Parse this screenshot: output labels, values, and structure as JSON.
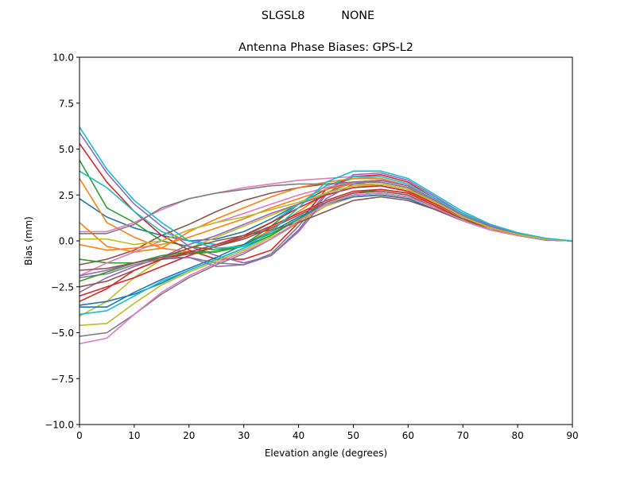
{
  "figure": {
    "suptitle": "SLGSL8          NONE"
  },
  "chart_data": {
    "type": "line",
    "title": "Antenna Phase Biases: GPS-L2",
    "xlabel": "Elevation angle (degrees)",
    "ylabel": "Bias (mm)",
    "xlim": [
      0,
      90
    ],
    "ylim": [
      -10,
      10
    ],
    "xticks": [
      0,
      10,
      20,
      30,
      40,
      50,
      60,
      70,
      80,
      90
    ],
    "xtick_labels": [
      "0",
      "10",
      "20",
      "30",
      "40",
      "50",
      "60",
      "70",
      "80",
      "90"
    ],
    "yticks": [
      10,
      7.5,
      5,
      2.5,
      0,
      -2.5,
      -5,
      -7.5,
      -10
    ],
    "ytick_labels": [
      "10.0",
      "7.5",
      "5.0",
      "2.5",
      "0.0",
      "−2.5",
      "−5.0",
      "−7.5",
      "−10.0"
    ],
    "grid": false,
    "legend": "none",
    "colors": [
      "#1f77b4",
      "#ff7f0e",
      "#2ca02c",
      "#d62728",
      "#9467bd",
      "#8c564b",
      "#e377c2",
      "#7f7f7f",
      "#bcbd22",
      "#17becf"
    ],
    "x": [
      0,
      5,
      10,
      15,
      20,
      25,
      30,
      35,
      40,
      45,
      50,
      55,
      60,
      65,
      70,
      75,
      80,
      85,
      90
    ],
    "series": [
      {
        "values": [
          2.3,
          1.3,
          0.7,
          0.3,
          0.0,
          0.1,
          0.5,
          1.2,
          2.0,
          2.8,
          3.2,
          3.3,
          3.0,
          2.2,
          1.4,
          0.8,
          0.4,
          0.1,
          0
        ]
      },
      {
        "values": [
          3.4,
          1.0,
          0.2,
          -0.4,
          -0.6,
          -0.6,
          -0.2,
          0.6,
          1.6,
          2.6,
          3.2,
          3.3,
          3.0,
          2.2,
          1.4,
          0.8,
          0.4,
          0.1,
          0
        ]
      },
      {
        "values": [
          4.4,
          1.8,
          1.0,
          0.0,
          -0.3,
          -0.5,
          -0.2,
          0.8,
          2.0,
          3.0,
          3.4,
          3.4,
          3.0,
          2.2,
          1.4,
          0.8,
          0.4,
          0.1,
          0
        ]
      },
      {
        "values": [
          5.3,
          3.2,
          1.6,
          0.3,
          -0.5,
          -1.0,
          -1.0,
          -0.5,
          1.0,
          2.8,
          3.5,
          3.6,
          3.2,
          2.3,
          1.5,
          0.8,
          0.4,
          0.1,
          0
        ]
      },
      {
        "values": [
          5.9,
          3.7,
          2.0,
          0.8,
          -0.3,
          -0.8,
          -1.2,
          -0.8,
          0.6,
          2.5,
          3.6,
          3.7,
          3.3,
          2.4,
          1.5,
          0.85,
          0.4,
          0.1,
          0
        ]
      },
      {
        "values": [
          -1.3,
          -1.0,
          -0.5,
          0.3,
          0.9,
          1.6,
          2.2,
          2.6,
          2.9,
          3.1,
          3.2,
          3.2,
          2.9,
          2.1,
          1.3,
          0.7,
          0.35,
          0.1,
          0
        ]
      },
      {
        "values": [
          0.5,
          0.5,
          1.0,
          1.7,
          2.3,
          2.6,
          2.9,
          3.1,
          3.3,
          3.4,
          3.5,
          3.4,
          3.0,
          2.2,
          1.4,
          0.8,
          0.4,
          0.1,
          0
        ]
      },
      {
        "values": [
          -2.0,
          -1.8,
          -1.3,
          -1.0,
          -0.9,
          -1.2,
          -1.3,
          -0.7,
          0.8,
          2.6,
          3.2,
          3.3,
          3.0,
          2.2,
          1.4,
          0.8,
          0.4,
          0.1,
          0
        ]
      },
      {
        "values": [
          -4.1,
          -3.3,
          -2.0,
          -1.0,
          -0.4,
          0.2,
          0.8,
          1.4,
          2.0,
          2.6,
          3.0,
          3.0,
          2.7,
          2.0,
          1.3,
          0.7,
          0.35,
          0.1,
          0
        ]
      },
      {
        "values": [
          3.8,
          2.9,
          1.6,
          0.5,
          0.0,
          -0.2,
          0.2,
          1.0,
          2.0,
          3.0,
          3.5,
          3.5,
          3.1,
          2.3,
          1.5,
          0.8,
          0.4,
          0.1,
          0
        ]
      },
      {
        "values": [
          -3.5,
          -3.3,
          -2.9,
          -2.3,
          -1.6,
          -1.0,
          -0.4,
          0.3,
          1.2,
          2.0,
          2.5,
          2.6,
          2.4,
          1.8,
          1.1,
          0.6,
          0.3,
          0.05,
          0
        ]
      },
      {
        "values": [
          1.0,
          -0.3,
          -0.6,
          -0.4,
          0.5,
          1.2,
          1.8,
          2.4,
          2.9,
          3.2,
          3.4,
          3.4,
          3.0,
          2.2,
          1.4,
          0.8,
          0.4,
          0.1,
          0
        ]
      },
      {
        "values": [
          -1.0,
          -1.2,
          -1.2,
          -0.9,
          -0.7,
          -0.6,
          -0.2,
          0.4,
          1.2,
          2.1,
          2.6,
          2.8,
          2.6,
          1.9,
          1.2,
          0.7,
          0.3,
          0.05,
          0
        ]
      },
      {
        "values": [
          -3.0,
          -2.5,
          -2.0,
          -1.4,
          -0.8,
          -0.3,
          0.2,
          0.8,
          1.5,
          2.2,
          2.7,
          2.8,
          2.6,
          1.9,
          1.2,
          0.7,
          0.3,
          0.05,
          0
        ]
      },
      {
        "values": [
          -2.8,
          -2.0,
          -1.4,
          -0.9,
          -0.2,
          0.3,
          0.9,
          1.5,
          2.0,
          2.5,
          2.9,
          3.0,
          2.7,
          2.0,
          1.3,
          0.7,
          0.35,
          0.1,
          0
        ]
      },
      {
        "values": [
          -2.5,
          -2.2,
          -1.6,
          -1.0,
          -0.7,
          -0.3,
          0.1,
          0.7,
          1.4,
          2.1,
          2.6,
          2.7,
          2.5,
          1.8,
          1.2,
          0.6,
          0.3,
          0.05,
          0
        ]
      },
      {
        "values": [
          -1.9,
          -1.2,
          -0.6,
          0.0,
          0.6,
          1.0,
          1.5,
          2.0,
          2.5,
          2.9,
          3.2,
          3.2,
          2.9,
          2.1,
          1.3,
          0.7,
          0.35,
          0.1,
          0
        ]
      },
      {
        "values": [
          -5.2,
          -5.0,
          -4.0,
          -2.9,
          -2.0,
          -1.3,
          -0.7,
          0.1,
          1.0,
          1.9,
          2.4,
          2.5,
          2.3,
          1.7,
          1.1,
          0.6,
          0.3,
          0.05,
          0
        ]
      },
      {
        "values": [
          -4.6,
          -4.5,
          -3.4,
          -2.4,
          -1.7,
          -1.1,
          -0.5,
          0.2,
          1.0,
          1.9,
          2.4,
          2.5,
          2.3,
          1.7,
          1.1,
          0.6,
          0.3,
          0.05,
          0
        ]
      },
      {
        "values": [
          -4.0,
          -3.8,
          -3.0,
          -2.2,
          -1.6,
          -1.0,
          -0.4,
          0.3,
          1.2,
          2.0,
          2.5,
          2.6,
          2.4,
          1.8,
          1.1,
          0.6,
          0.3,
          0.05,
          0
        ]
      },
      {
        "values": [
          -3.6,
          -3.6,
          -2.8,
          -2.1,
          -1.5,
          -0.9,
          -0.2,
          0.5,
          1.3,
          2.0,
          2.4,
          2.5,
          2.3,
          1.7,
          1.1,
          0.6,
          0.3,
          0.05,
          0
        ]
      },
      {
        "values": [
          -0.2,
          -0.5,
          -0.4,
          -0.2,
          0.2,
          0.7,
          1.2,
          1.8,
          2.3,
          2.8,
          3.1,
          3.1,
          2.8,
          2.0,
          1.3,
          0.7,
          0.35,
          0.1,
          0
        ]
      },
      {
        "values": [
          -2.2,
          -1.7,
          -1.2,
          -0.8,
          -0.6,
          -0.6,
          -0.3,
          0.3,
          1.2,
          2.0,
          2.5,
          2.6,
          2.4,
          1.8,
          1.1,
          0.6,
          0.3,
          0.05,
          0
        ]
      },
      {
        "values": [
          -3.3,
          -2.6,
          -1.6,
          -1.0,
          -0.6,
          -0.2,
          0.3,
          1.0,
          1.8,
          2.5,
          2.9,
          3.0,
          2.7,
          2.0,
          1.3,
          0.7,
          0.35,
          0.1,
          0
        ]
      },
      {
        "values": [
          -1.9,
          -1.6,
          -1.2,
          -0.9,
          -0.9,
          -1.4,
          -1.3,
          -0.8,
          0.5,
          2.3,
          3.1,
          3.3,
          3.0,
          2.2,
          1.4,
          0.8,
          0.4,
          0.1,
          0
        ]
      },
      {
        "values": [
          -1.6,
          -1.5,
          -1.2,
          -0.9,
          -0.4,
          0.0,
          0.3,
          0.6,
          1.0,
          1.6,
          2.2,
          2.4,
          2.2,
          1.7,
          1.1,
          0.6,
          0.3,
          0.05,
          0
        ]
      },
      {
        "values": [
          -5.6,
          -5.3,
          -4.0,
          -2.8,
          -1.9,
          -1.2,
          -0.6,
          0.1,
          1.1,
          2.0,
          2.5,
          2.6,
          2.4,
          1.8,
          1.1,
          0.6,
          0.3,
          0.05,
          0
        ]
      },
      {
        "values": [
          0.4,
          0.4,
          0.9,
          1.8,
          2.3,
          2.6,
          2.8,
          3.0,
          3.1,
          3.1,
          3.2,
          3.2,
          2.9,
          2.1,
          1.3,
          0.7,
          0.35,
          0.1,
          0
        ]
      },
      {
        "values": [
          0.1,
          0.1,
          -0.2,
          0.0,
          0.6,
          1.0,
          1.3,
          1.7,
          2.1,
          2.6,
          3.0,
          3.1,
          2.8,
          2.1,
          1.3,
          0.7,
          0.35,
          0.1,
          0
        ]
      },
      {
        "values": [
          6.2,
          3.9,
          2.2,
          1.0,
          0.0,
          -0.4,
          -0.3,
          0.5,
          1.8,
          3.2,
          3.8,
          3.8,
          3.4,
          2.5,
          1.6,
          0.9,
          0.45,
          0.15,
          0
        ]
      }
    ]
  }
}
